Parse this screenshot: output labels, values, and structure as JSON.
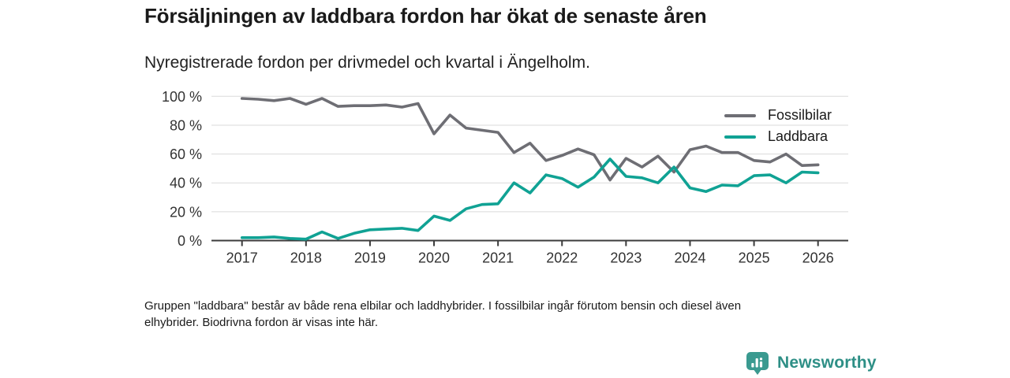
{
  "header": {
    "title": "Försäljningen av laddbara fordon har ökat de senaste åren",
    "subtitle": "Nyregistrerade fordon per drivmedel och kvartal i Ängelholm."
  },
  "chart_data": {
    "type": "line",
    "x": [
      "2017 Q1",
      "2017 Q2",
      "2017 Q3",
      "2017 Q4",
      "2018 Q1",
      "2018 Q2",
      "2018 Q3",
      "2018 Q4",
      "2019 Q1",
      "2019 Q2",
      "2019 Q3",
      "2019 Q4",
      "2020 Q1",
      "2020 Q2",
      "2020 Q3",
      "2020 Q4",
      "2021 Q1",
      "2021 Q2",
      "2021 Q3",
      "2021 Q4",
      "2022 Q1",
      "2022 Q2",
      "2022 Q3",
      "2022 Q4",
      "2023 Q1",
      "2023 Q2",
      "2023 Q3",
      "2023 Q4",
      "2024 Q1",
      "2024 Q2",
      "2024 Q3",
      "2024 Q4",
      "2025 Q1",
      "2025 Q2",
      "2025 Q3",
      "2025 Q4",
      "2026 Q1"
    ],
    "series": [
      {
        "name": "Fossilbilar",
        "color": "#6e6e74",
        "values": [
          98.5,
          98,
          97,
          98.5,
          94.5,
          98.5,
          93,
          93.5,
          93.5,
          94,
          92.5,
          95,
          74,
          87,
          78,
          76.5,
          75,
          61,
          67.5,
          55.5,
          59,
          63.5,
          59.5,
          42,
          57,
          51,
          58.5,
          47.5,
          63,
          65.5,
          61,
          61,
          55.5,
          54.5,
          60,
          52,
          52.5
        ]
      },
      {
        "name": "Laddbara",
        "color": "#10a294",
        "values": [
          2,
          2,
          2.5,
          1.5,
          1,
          6,
          1.5,
          5,
          7.5,
          8,
          8.5,
          7,
          17,
          14,
          22,
          25,
          25.5,
          40,
          33,
          45.5,
          43,
          37,
          44,
          56.5,
          44.5,
          43.5,
          40,
          51,
          36.5,
          34,
          38.5,
          38,
          45,
          45.5,
          40,
          47.5,
          47
        ]
      }
    ],
    "x_year_ticks": [
      "2017",
      "2018",
      "2019",
      "2020",
      "2021",
      "2022",
      "2023",
      "2024",
      "2025",
      "2026"
    ],
    "y_ticks": [
      0,
      20,
      40,
      60,
      80,
      100
    ],
    "y_tick_labels": [
      "0 %",
      "20 %",
      "40 %",
      "60 %",
      "80 %",
      "100 %"
    ],
    "ylim": [
      0,
      100
    ],
    "grid": "horizontal",
    "legend_position": "top-right"
  },
  "footnote": {
    "line1": "Gruppen \"laddbara\" består av både rena elbilar och laddhybrider. I fossilbilar ingår förutom bensin och diesel även",
    "line2": "elhybrider. Biodrivna fordon är visas inte här."
  },
  "branding": {
    "logo_text": "Newsworthy",
    "logo_icon": "bar-chart-pin-icon",
    "logo_color": "#2e8f86"
  },
  "colors": {
    "grid": "#dadada",
    "axis": "#3b3b3b",
    "tick_text": "#333333"
  }
}
